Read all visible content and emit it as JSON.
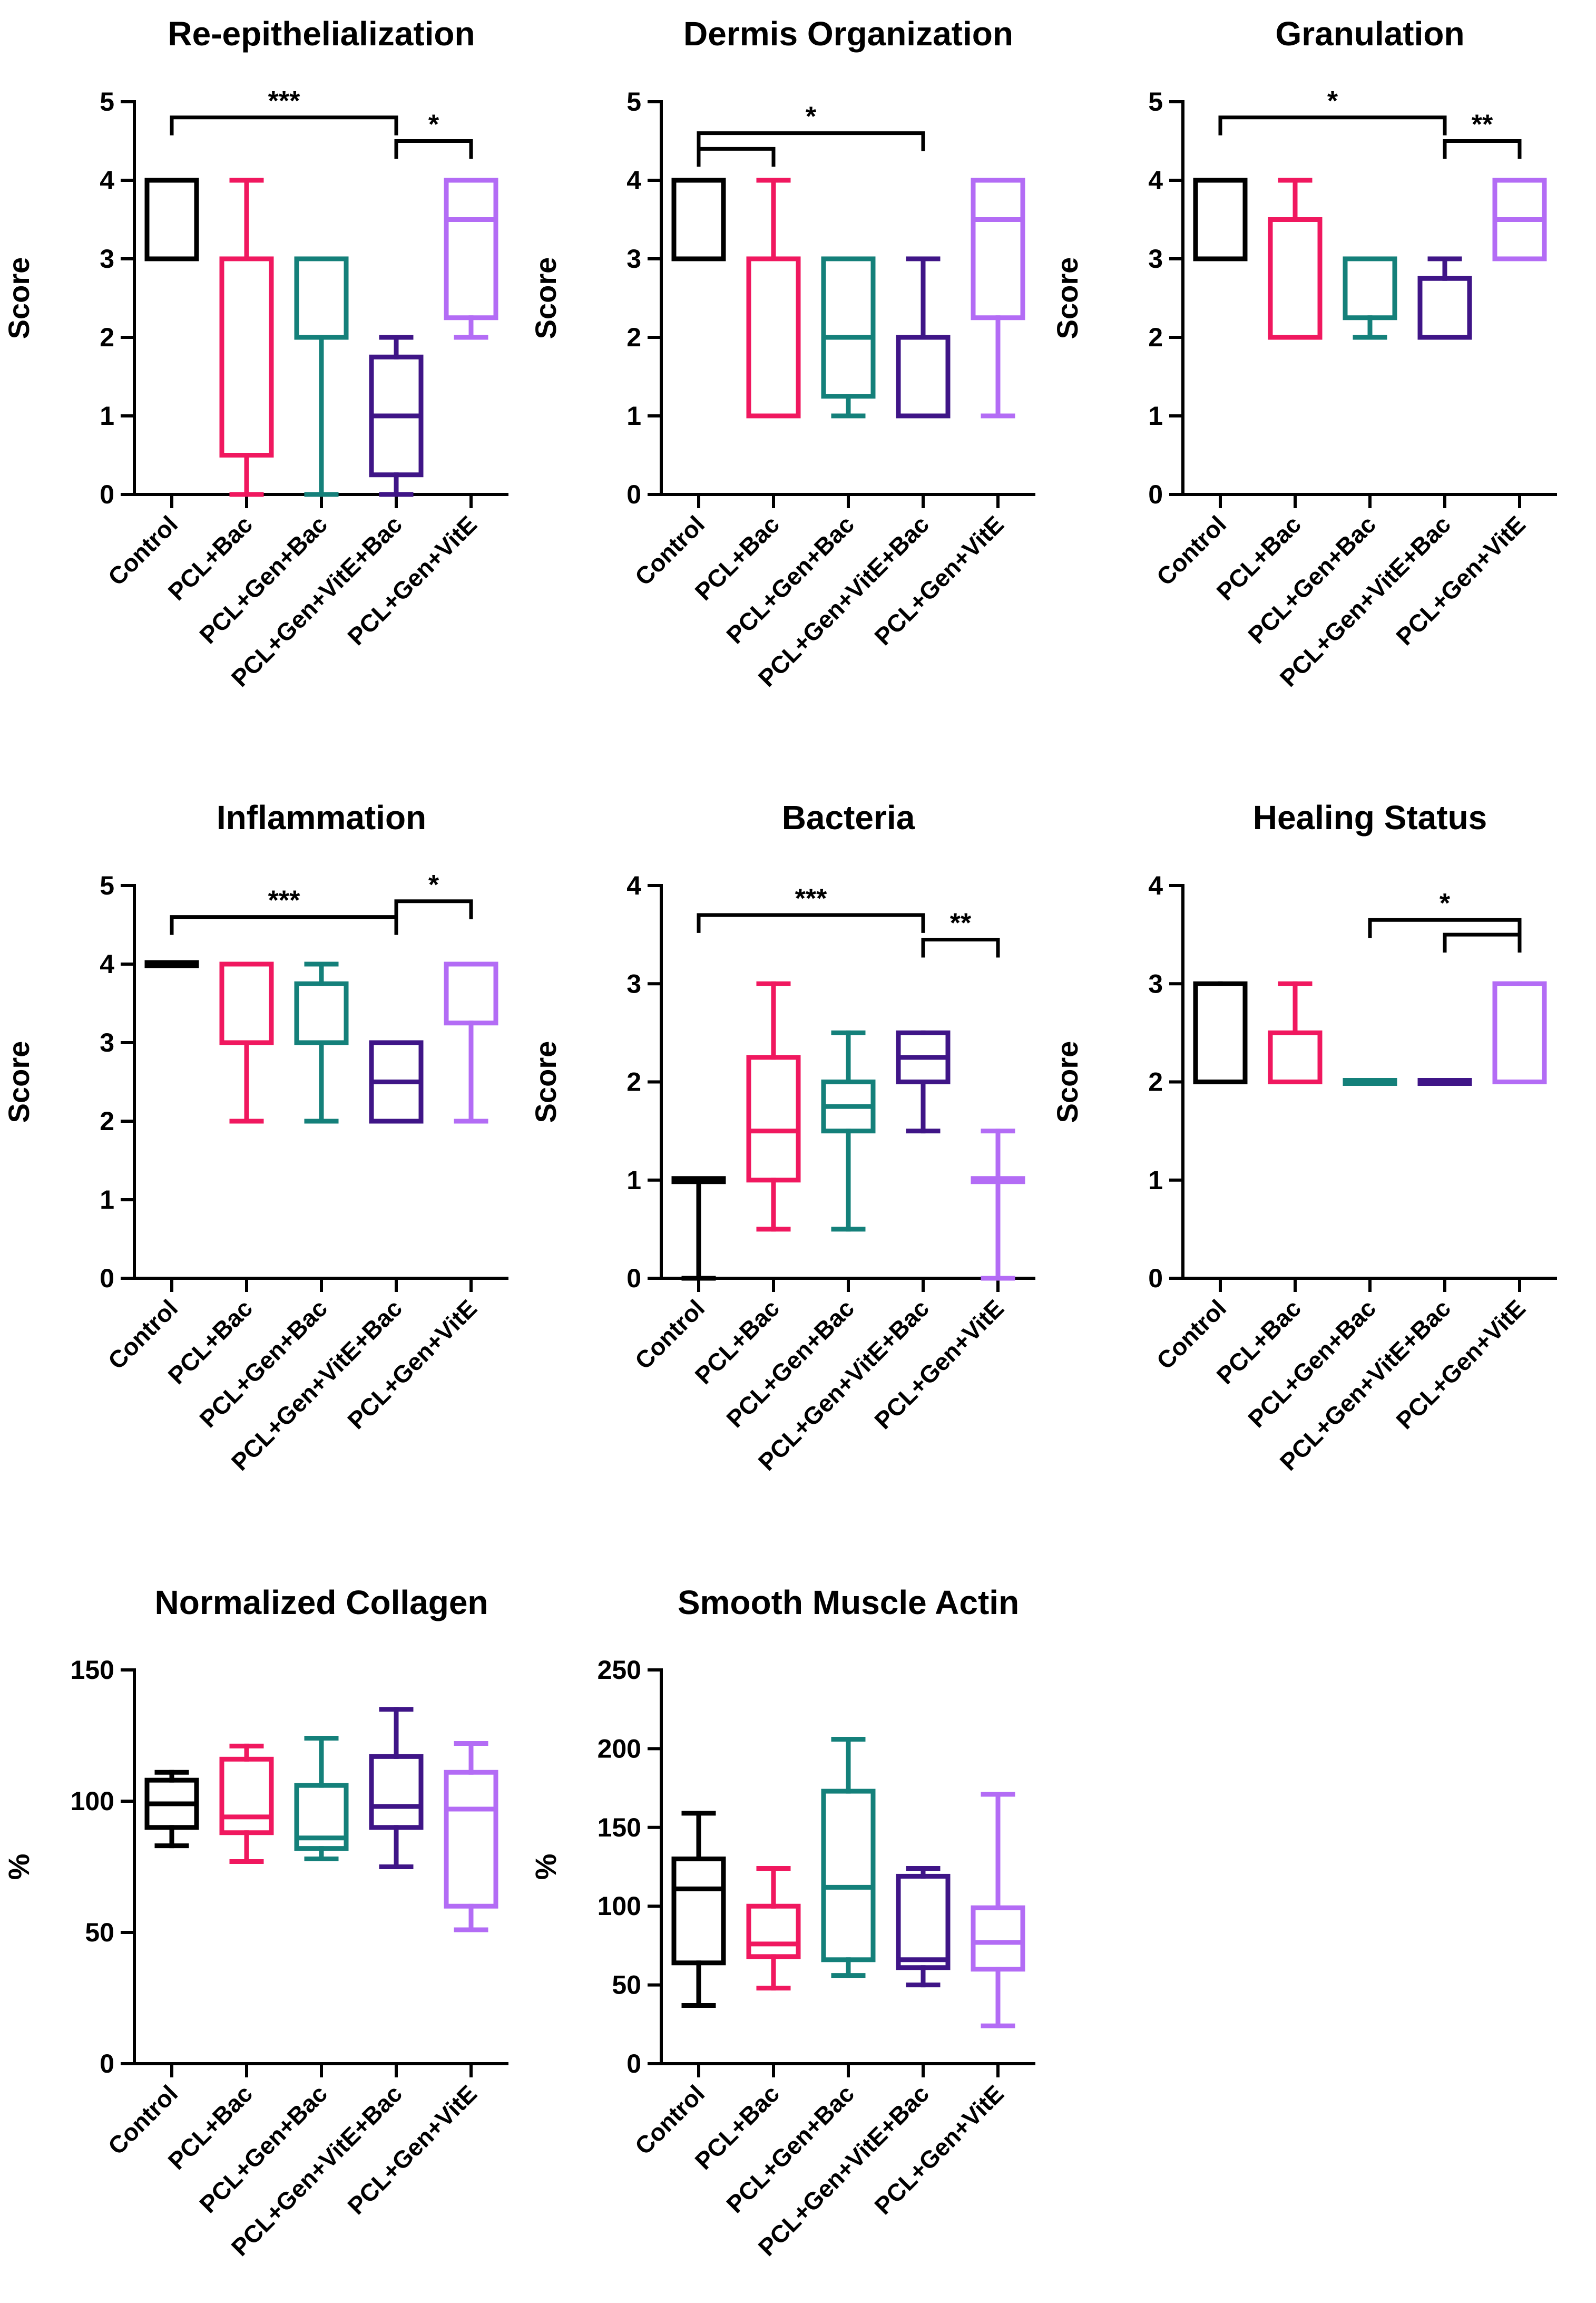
{
  "colors": {
    "Control": "#000000",
    "PCL+Bac": "#f0185f",
    "PCL+Gen+Bac": "#14807a",
    "PCL+Gen+VitE+Bac": "#3f1587",
    "PCL+Gen+VitE": "#b36cf5"
  },
  "chart_data": [
    {
      "type": "boxplot",
      "title": "Re-epithelialization",
      "ylabel": "Score",
      "ylim": [
        0,
        5
      ],
      "yticks": [
        0,
        1,
        2,
        3,
        4,
        5
      ],
      "categories": [
        "Control",
        "PCL+Bac",
        "PCL+Gen+Bac",
        "PCL+Gen+VitE+Bac",
        "PCL+Gen+VitE"
      ],
      "boxes": [
        {
          "min": 3,
          "q1": 3,
          "median": 4,
          "q3": 4,
          "max": 4
        },
        {
          "min": 0,
          "q1": 0.5,
          "median": 3,
          "q3": 3,
          "max": 4
        },
        {
          "min": 0,
          "q1": 2,
          "median": 3,
          "q3": 3,
          "max": 3
        },
        {
          "min": 0,
          "q1": 0.25,
          "median": 1,
          "q3": 1.75,
          "max": 2
        },
        {
          "min": 2,
          "q1": 2.25,
          "median": 3.5,
          "q3": 4,
          "max": 4
        }
      ],
      "significance": [
        {
          "from": 0,
          "to": 3,
          "label": "***",
          "level": 4.8
        },
        {
          "from": 3,
          "to": 4,
          "label": "*",
          "level": 4.5
        }
      ]
    },
    {
      "type": "boxplot",
      "title": "Dermis Organization",
      "ylabel": "Score",
      "ylim": [
        0,
        5
      ],
      "yticks": [
        0,
        1,
        2,
        3,
        4,
        5
      ],
      "categories": [
        "Control",
        "PCL+Bac",
        "PCL+Gen+Bac",
        "PCL+Gen+VitE+Bac",
        "PCL+Gen+VitE"
      ],
      "boxes": [
        {
          "min": 3,
          "q1": 3,
          "median": 3,
          "q3": 4,
          "max": 4
        },
        {
          "min": 1,
          "q1": 1,
          "median": 1,
          "q3": 3,
          "max": 4
        },
        {
          "min": 1,
          "q1": 1.25,
          "median": 2,
          "q3": 3,
          "max": 3
        },
        {
          "min": 1,
          "q1": 1,
          "median": 2,
          "q3": 2,
          "max": 3
        },
        {
          "min": 1,
          "q1": 2.25,
          "median": 3.5,
          "q3": 4,
          "max": 4
        }
      ],
      "significance": [
        {
          "from": 0,
          "to": 3,
          "label": "*",
          "level": 4.6
        },
        {
          "from": 0,
          "to": 1,
          "label": "",
          "level": 4.4
        }
      ]
    },
    {
      "type": "boxplot",
      "title": "Granulation",
      "ylabel": "Score",
      "ylim": [
        0,
        5
      ],
      "yticks": [
        0,
        1,
        2,
        3,
        4,
        5
      ],
      "categories": [
        "Control",
        "PCL+Bac",
        "PCL+Gen+Bac",
        "PCL+Gen+VitE+Bac",
        "PCL+Gen+VitE"
      ],
      "boxes": [
        {
          "min": 3,
          "q1": 3,
          "median": 3,
          "q3": 4,
          "max": 4
        },
        {
          "min": 2,
          "q1": 2,
          "median": 2,
          "q3": 3.5,
          "max": 4
        },
        {
          "min": 2,
          "q1": 2.25,
          "median": 3,
          "q3": 3,
          "max": 3
        },
        {
          "min": 2,
          "q1": 2,
          "median": 2,
          "q3": 2.75,
          "max": 3
        },
        {
          "min": 3,
          "q1": 3,
          "median": 3.5,
          "q3": 4,
          "max": 4
        }
      ],
      "significance": [
        {
          "from": 0,
          "to": 3,
          "label": "*",
          "level": 4.8
        },
        {
          "from": 3,
          "to": 4,
          "label": "**",
          "level": 4.5
        }
      ]
    },
    {
      "type": "boxplot",
      "title": "Inflammation",
      "ylabel": "Score",
      "ylim": [
        0,
        5
      ],
      "yticks": [
        0,
        1,
        2,
        3,
        4,
        5
      ],
      "categories": [
        "Control",
        "PCL+Bac",
        "PCL+Gen+Bac",
        "PCL+Gen+VitE+Bac",
        "PCL+Gen+VitE"
      ],
      "boxes": [
        {
          "min": 4,
          "q1": 4,
          "median": 4,
          "q3": 4,
          "max": 4
        },
        {
          "min": 2,
          "q1": 3,
          "median": 3,
          "q3": 4,
          "max": 4
        },
        {
          "min": 2,
          "q1": 3,
          "median": 3,
          "q3": 3.75,
          "max": 4
        },
        {
          "min": 2,
          "q1": 2,
          "median": 2.5,
          "q3": 3,
          "max": 3
        },
        {
          "min": 2,
          "q1": 3.25,
          "median": 4,
          "q3": 4,
          "max": 4
        }
      ],
      "significance": [
        {
          "from": 0,
          "to": 3,
          "label": "***",
          "level": 4.6
        },
        {
          "from": 3,
          "to": 4,
          "label": "*",
          "level": 4.8
        }
      ]
    },
    {
      "type": "boxplot",
      "title": "Bacteria",
      "ylabel": "Score",
      "ylim": [
        0,
        4
      ],
      "yticks": [
        0,
        1,
        2,
        3,
        4
      ],
      "categories": [
        "Control",
        "PCL+Bac",
        "PCL+Gen+Bac",
        "PCL+Gen+VitE+Bac",
        "PCL+Gen+VitE"
      ],
      "boxes": [
        {
          "min": 0,
          "q1": 1,
          "median": 1,
          "q3": 1,
          "max": 1
        },
        {
          "min": 0.5,
          "q1": 1,
          "median": 1.5,
          "q3": 2.25,
          "max": 3
        },
        {
          "min": 0.5,
          "q1": 1.5,
          "median": 1.75,
          "q3": 2,
          "max": 2.5
        },
        {
          "min": 1.5,
          "q1": 2,
          "median": 2.25,
          "q3": 2.5,
          "max": 2.5
        },
        {
          "min": 0,
          "q1": 1,
          "median": 1,
          "q3": 1,
          "max": 1.5
        }
      ],
      "significance": [
        {
          "from": 0,
          "to": 3,
          "label": "***",
          "level": 3.7
        },
        {
          "from": 3,
          "to": 4,
          "label": "**",
          "level": 3.45
        }
      ]
    },
    {
      "type": "boxplot",
      "title": "Healing Status",
      "ylabel": "Score",
      "ylim": [
        0,
        4
      ],
      "yticks": [
        0,
        1,
        2,
        3,
        4
      ],
      "categories": [
        "Control",
        "PCL+Bac",
        "PCL+Gen+Bac",
        "PCL+Gen+VitE+Bac",
        "PCL+Gen+VitE"
      ],
      "boxes": [
        {
          "min": 2,
          "q1": 2,
          "median": 2,
          "q3": 3,
          "max": 3
        },
        {
          "min": 2,
          "q1": 2,
          "median": 2,
          "q3": 2.5,
          "max": 3
        },
        {
          "min": 2,
          "q1": 2,
          "median": 2,
          "q3": 2,
          "max": 2
        },
        {
          "min": 2,
          "q1": 2,
          "median": 2,
          "q3": 2,
          "max": 2
        },
        {
          "min": 2,
          "q1": 2,
          "median": 3,
          "q3": 3,
          "max": 3
        }
      ],
      "significance": [
        {
          "from": 2,
          "to": 4,
          "label": "*",
          "level": 3.65
        },
        {
          "from": 3,
          "to": 4,
          "label": "",
          "level": 3.5
        }
      ]
    },
    {
      "type": "boxplot",
      "title": "Normalized Collagen",
      "ylabel": "%",
      "ylim": [
        0,
        150
      ],
      "yticks": [
        0,
        50,
        100,
        150
      ],
      "categories": [
        "Control",
        "PCL+Bac",
        "PCL+Gen+Bac",
        "PCL+Gen+VitE+Bac",
        "PCL+Gen+VitE"
      ],
      "boxes": [
        {
          "min": 83,
          "q1": 90,
          "median": 99,
          "q3": 108,
          "max": 111
        },
        {
          "min": 77,
          "q1": 88,
          "median": 94,
          "q3": 116,
          "max": 121
        },
        {
          "min": 78,
          "q1": 82,
          "median": 86,
          "q3": 106,
          "max": 124
        },
        {
          "min": 75,
          "q1": 90,
          "median": 98,
          "q3": 117,
          "max": 135
        },
        {
          "min": 51,
          "q1": 60,
          "median": 97,
          "q3": 111,
          "max": 122
        }
      ],
      "significance": []
    },
    {
      "type": "boxplot",
      "title": "Smooth Muscle Actin",
      "ylabel": "%",
      "ylim": [
        0,
        250
      ],
      "yticks": [
        0,
        50,
        100,
        150,
        200,
        250
      ],
      "categories": [
        "Control",
        "PCL+Bac",
        "PCL+Gen+Bac",
        "PCL+Gen+VitE+Bac",
        "PCL+Gen+VitE"
      ],
      "boxes": [
        {
          "min": 37,
          "q1": 64,
          "median": 111,
          "q3": 130,
          "max": 159
        },
        {
          "min": 48,
          "q1": 68,
          "median": 76,
          "q3": 100,
          "max": 124
        },
        {
          "min": 56,
          "q1": 66,
          "median": 112,
          "q3": 173,
          "max": 206
        },
        {
          "min": 50,
          "q1": 61,
          "median": 66,
          "q3": 119,
          "max": 124
        },
        {
          "min": 24,
          "q1": 60,
          "median": 77,
          "q3": 99,
          "max": 171
        }
      ],
      "significance": []
    }
  ]
}
